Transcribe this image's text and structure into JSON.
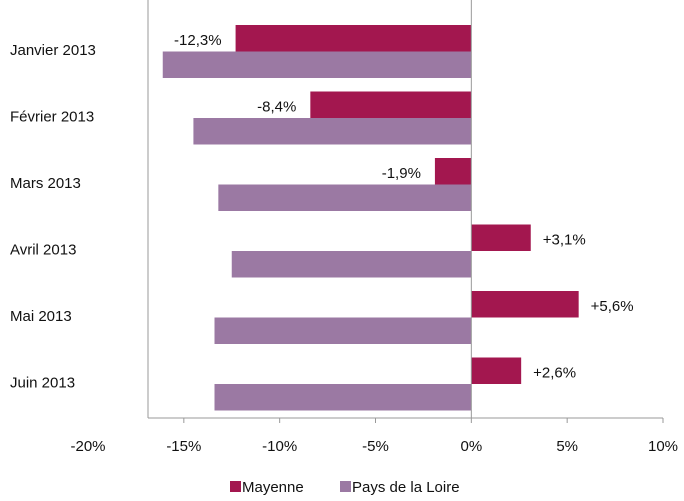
{
  "chart_data": {
    "type": "bar",
    "orientation": "horizontal",
    "categories": [
      "Janvier 2013",
      "Février 2013",
      "Mars 2013",
      "Avril 2013",
      "Mai 2013",
      "Juin 2013"
    ],
    "series": [
      {
        "name": "Mayenne",
        "color": "#a3174f",
        "values": [
          -12.3,
          -8.4,
          -1.9,
          3.1,
          5.6,
          2.6
        ],
        "value_labels": [
          "-12,3%",
          "-8,4%",
          "-1,9%",
          "+3,1%",
          "+5,6%",
          "+2,6%"
        ]
      },
      {
        "name": "Pays de la Loire",
        "color": "#9b79a3",
        "values": [
          -16.1,
          -14.5,
          -13.2,
          -12.5,
          -13.4,
          -13.4
        ]
      }
    ],
    "xlim": [
      -20,
      10
    ],
    "xticks": [
      {
        "value": -20,
        "label": "-20%"
      },
      {
        "value": -15,
        "label": "-15%"
      },
      {
        "value": -10,
        "label": "-10%"
      },
      {
        "value": -5,
        "label": "-5%"
      },
      {
        "value": 0,
        "label": "0%"
      },
      {
        "value": 5,
        "label": "5%"
      },
      {
        "value": 10,
        "label": "10%"
      }
    ],
    "legend": "bottom"
  }
}
